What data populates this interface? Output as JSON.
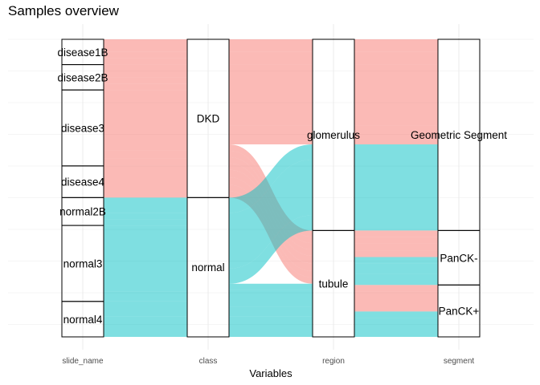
{
  "chart_data": {
    "type": "alluvial",
    "title": "Samples overview",
    "xlabel": "Variables",
    "ylabel": "",
    "axes": [
      "slide_name",
      "class",
      "region",
      "segment"
    ],
    "fill_by": "class",
    "colors": {
      "DKD": "#F8766D",
      "normal": "#00BFC4"
    },
    "grid": true,
    "legend": "none",
    "total": 235,
    "strata": {
      "slide_name": [
        {
          "label": "disease1B",
          "count": 20
        },
        {
          "label": "disease2B",
          "count": 20
        },
        {
          "label": "disease3",
          "count": 60
        },
        {
          "label": "disease4",
          "count": 25
        },
        {
          "label": "normal2B",
          "count": 22
        },
        {
          "label": "normal3",
          "count": 60
        },
        {
          "label": "normal4",
          "count": 28
        }
      ],
      "class": [
        {
          "label": "DKD",
          "count": 125
        },
        {
          "label": "normal",
          "count": 110
        }
      ],
      "region": [
        {
          "label": "glomerulus",
          "count": 151
        },
        {
          "label": "tubule",
          "count": 84
        }
      ],
      "segment": [
        {
          "label": "Geometric Segment",
          "count": 151
        },
        {
          "label": "PanCK-",
          "count": 43
        },
        {
          "label": "PanCK+",
          "count": 41
        }
      ]
    },
    "flows": [
      {
        "slide_name": "disease1B",
        "class": "DKD",
        "region": "glomerulus",
        "segment": "Geometric Segment",
        "count": 10
      },
      {
        "slide_name": "disease1B",
        "class": "DKD",
        "region": "tubule",
        "segment": "PanCK-",
        "count": 5
      },
      {
        "slide_name": "disease1B",
        "class": "DKD",
        "region": "tubule",
        "segment": "PanCK+",
        "count": 5
      },
      {
        "slide_name": "disease2B",
        "class": "DKD",
        "region": "glomerulus",
        "segment": "Geometric Segment",
        "count": 10
      },
      {
        "slide_name": "disease2B",
        "class": "DKD",
        "region": "tubule",
        "segment": "PanCK-",
        "count": 5
      },
      {
        "slide_name": "disease2B",
        "class": "DKD",
        "region": "tubule",
        "segment": "PanCK+",
        "count": 5
      },
      {
        "slide_name": "disease3",
        "class": "DKD",
        "region": "glomerulus",
        "segment": "Geometric Segment",
        "count": 48
      },
      {
        "slide_name": "disease3",
        "class": "DKD",
        "region": "tubule",
        "segment": "PanCK-",
        "count": 6
      },
      {
        "slide_name": "disease3",
        "class": "DKD",
        "region": "tubule",
        "segment": "PanCK+",
        "count": 6
      },
      {
        "slide_name": "disease4",
        "class": "DKD",
        "region": "glomerulus",
        "segment": "Geometric Segment",
        "count": 15
      },
      {
        "slide_name": "disease4",
        "class": "DKD",
        "region": "tubule",
        "segment": "PanCK-",
        "count": 5
      },
      {
        "slide_name": "disease4",
        "class": "DKD",
        "region": "tubule",
        "segment": "PanCK+",
        "count": 5
      },
      {
        "slide_name": "normal2B",
        "class": "normal",
        "region": "glomerulus",
        "segment": "Geometric Segment",
        "count": 12
      },
      {
        "slide_name": "normal2B",
        "class": "normal",
        "region": "tubule",
        "segment": "PanCK-",
        "count": 5
      },
      {
        "slide_name": "normal2B",
        "class": "normal",
        "region": "tubule",
        "segment": "PanCK+",
        "count": 5
      },
      {
        "slide_name": "normal3",
        "class": "normal",
        "region": "glomerulus",
        "segment": "Geometric Segment",
        "count": 44
      },
      {
        "slide_name": "normal3",
        "class": "normal",
        "region": "tubule",
        "segment": "PanCK-",
        "count": 8
      },
      {
        "slide_name": "normal3",
        "class": "normal",
        "region": "tubule",
        "segment": "PanCK+",
        "count": 8
      },
      {
        "slide_name": "normal4",
        "class": "normal",
        "region": "glomerulus",
        "segment": "Geometric Segment",
        "count": 12
      },
      {
        "slide_name": "normal4",
        "class": "normal",
        "region": "tubule",
        "segment": "PanCK-",
        "count": 9
      },
      {
        "slide_name": "normal4",
        "class": "normal",
        "region": "tubule",
        "segment": "PanCK+",
        "count": 7
      }
    ]
  }
}
